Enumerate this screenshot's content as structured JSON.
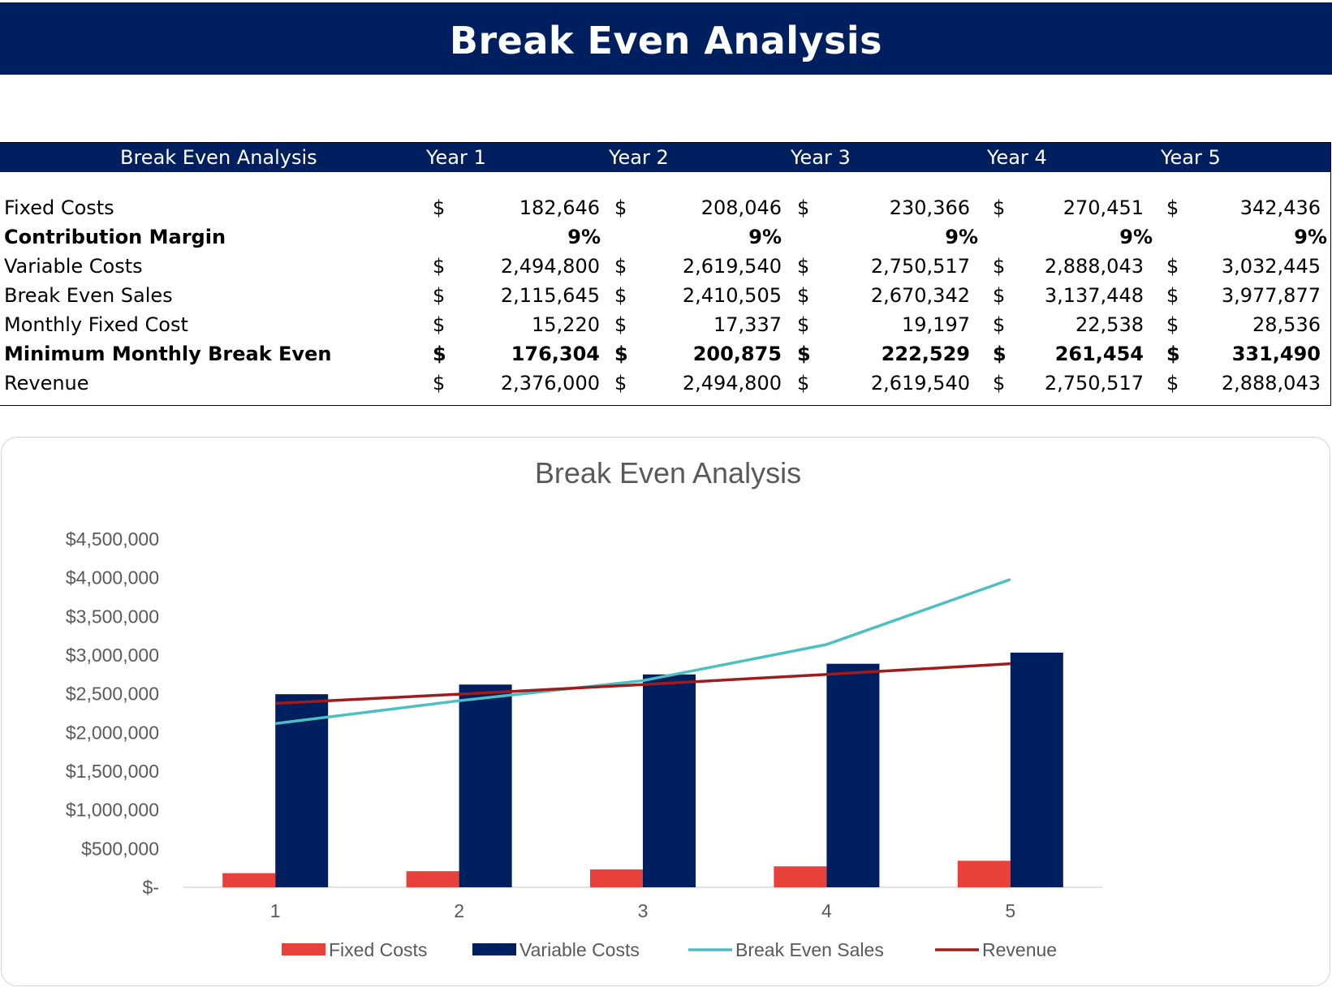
{
  "banner": {
    "title": "Break Even Analysis"
  },
  "table": {
    "header": [
      "Break Even Analysis",
      "Year 1",
      "Year 2",
      "Year 3",
      "Year 4",
      "Year 5"
    ],
    "currency_symbol": "$",
    "rows": [
      {
        "label": "Fixed Costs",
        "bold": false,
        "currency": true,
        "values": [
          "182,646",
          "208,046",
          "230,366",
          "270,451",
          "342,436"
        ]
      },
      {
        "label": "Contribution Margin",
        "bold": true,
        "currency": false,
        "values": [
          "9%",
          "9%",
          "9%",
          "9%",
          "9%"
        ]
      },
      {
        "label": "Variable Costs",
        "bold": false,
        "currency": true,
        "values": [
          "2,494,800",
          "2,619,540",
          "2,750,517",
          "2,888,043",
          "3,032,445"
        ]
      },
      {
        "label": "Break Even Sales",
        "bold": false,
        "currency": true,
        "values": [
          "2,115,645",
          "2,410,505",
          "2,670,342",
          "3,137,448",
          "3,977,877"
        ]
      },
      {
        "label": "Monthly Fixed Cost",
        "bold": false,
        "currency": true,
        "values": [
          "15,220",
          "17,337",
          "19,197",
          "22,538",
          "28,536"
        ]
      },
      {
        "label": "Minimum Monthly Break Even",
        "bold": true,
        "currency": true,
        "values": [
          "176,304",
          "200,875",
          "222,529",
          "261,454",
          "331,490"
        ]
      },
      {
        "label": "Revenue",
        "bold": false,
        "currency": true,
        "values": [
          "2,376,000",
          "2,494,800",
          "2,619,540",
          "2,750,517",
          "2,888,043"
        ]
      }
    ]
  },
  "chart_data": {
    "type": "bar",
    "title": "Break Even Analysis",
    "categories": [
      "1",
      "2",
      "3",
      "4",
      "5"
    ],
    "ylim": [
      0,
      4500000
    ],
    "yticks": [
      0,
      500000,
      1000000,
      1500000,
      2000000,
      2500000,
      3000000,
      3500000,
      4000000,
      4500000
    ],
    "ytick_labels": [
      "$-",
      "$500,000",
      "$1,000,000",
      "$1,500,000",
      "$2,000,000",
      "$2,500,000",
      "$3,000,000",
      "$3,500,000",
      "$4,000,000",
      "$4,500,000"
    ],
    "grid": false,
    "legend_position": "bottom",
    "series": [
      {
        "name": "Fixed Costs",
        "kind": "bar",
        "color": "#e8403a",
        "values": [
          182646,
          208046,
          230366,
          270451,
          342436
        ]
      },
      {
        "name": "Variable Costs",
        "kind": "bar",
        "color": "#001f5f",
        "values": [
          2494800,
          2619540,
          2750517,
          2888043,
          3032445
        ]
      },
      {
        "name": "Break Even Sales",
        "kind": "line",
        "color": "#4bbfc3",
        "values": [
          2115645,
          2410505,
          2670342,
          3137448,
          3977877
        ]
      },
      {
        "name": "Revenue",
        "kind": "line",
        "color": "#a01c1c",
        "values": [
          2376000,
          2494800,
          2619540,
          2750517,
          2888043
        ]
      }
    ]
  }
}
